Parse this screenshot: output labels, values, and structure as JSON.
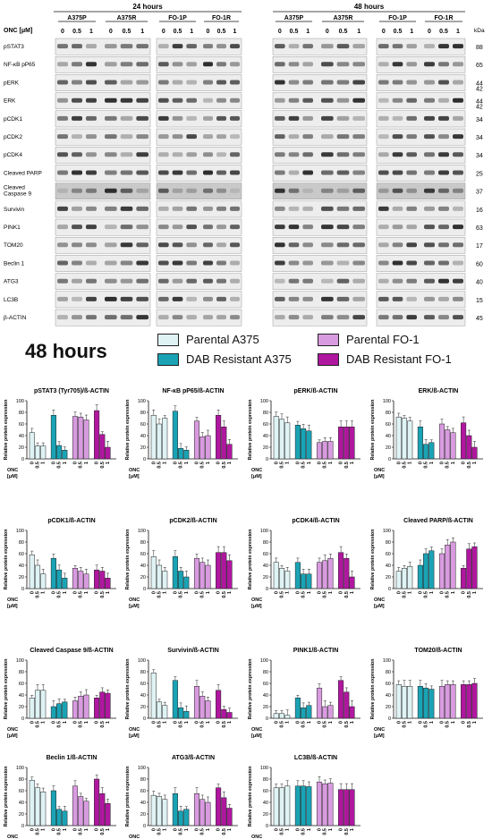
{
  "colors": {
    "parental_a375": "#dff3f4",
    "resistant_a375": "#1aa3b5",
    "parental_fo1": "#d99be0",
    "resistant_fo1": "#b0179f",
    "bar_stroke": "#222222"
  },
  "western_blot": {
    "time_labels": [
      "24 hours",
      "48 hours"
    ],
    "onc_label": "ONC [μM]",
    "doses": [
      "0",
      "0.5",
      "1"
    ],
    "groups": [
      "A375P",
      "A375R",
      "FO-1P",
      "FO-1R"
    ],
    "kda_label": "kDa",
    "proteins": [
      {
        "name": "pSTAT3",
        "kda": "88"
      },
      {
        "name": "NF-κB pP65",
        "kda": "65"
      },
      {
        "name": "pERK",
        "kda": "44"
      },
      {
        "name": "ERK",
        "kda": "44"
      },
      {
        "name": "pCDK1",
        "kda": "34"
      },
      {
        "name": "pCDK2",
        "kda": "34"
      },
      {
        "name": "pCDK4",
        "kda": "34"
      },
      {
        "name": "Cleaved PARP",
        "kda": "25"
      },
      {
        "name": "Cleaved Caspase 9",
        "kda": "37"
      },
      {
        "name": "Survivin",
        "kda": "16"
      },
      {
        "name": "PINK1",
        "kda": "63"
      },
      {
        "name": "TOM20",
        "kda": "17"
      },
      {
        "name": "Beclin 1",
        "kda": "60"
      },
      {
        "name": "ATG3",
        "kda": "40"
      },
      {
        "name": "LC3B",
        "kda": "15"
      },
      {
        "name": "β-ACTIN",
        "kda": "45"
      }
    ],
    "extra_kda": {
      "pERK": "42",
      "ERK": "42"
    }
  },
  "legend": {
    "title": "48 hours",
    "items": [
      "Parental A375",
      "DAB Resistant A375",
      "Parental FO-1",
      "DAB Resistant FO-1"
    ]
  },
  "axis": {
    "ylabel": "Relative protein expression",
    "onc_label": "ONC",
    "unit_label": "[μM]",
    "doses": [
      "0",
      "0.5",
      "1"
    ],
    "yticks": [
      0,
      20,
      40,
      60,
      80,
      100
    ]
  },
  "chart_data": [
    {
      "type": "bar",
      "title": "pSTAT3 (Tyr705)/ß-ACTIN",
      "ylim": [
        0,
        100
      ],
      "groups": [
        "Parental A375",
        "DAB Resistant A375",
        "Parental FO-1",
        "DAB Resistant FO-1"
      ],
      "categories": [
        "0",
        "0.5",
        "1"
      ],
      "series": [
        {
          "name": "Parental A375",
          "values": [
            45,
            22,
            22
          ]
        },
        {
          "name": "DAB Resistant A375",
          "values": [
            75,
            23,
            15
          ]
        },
        {
          "name": "Parental FO-1",
          "values": [
            73,
            72,
            67
          ]
        },
        {
          "name": "DAB Resistant FO-1",
          "values": [
            83,
            42,
            20
          ]
        }
      ]
    },
    {
      "type": "bar",
      "title": "NF-κB pP65/ß-ACTIN",
      "ylim": [
        0,
        100
      ],
      "groups": [
        "Parental A375",
        "DAB Resistant A375",
        "Parental FO-1",
        "DAB Resistant FO-1"
      ],
      "categories": [
        "0",
        "0.5",
        "1"
      ],
      "series": [
        {
          "name": "Parental A375",
          "values": [
            75,
            60,
            70
          ]
        },
        {
          "name": "DAB Resistant A375",
          "values": [
            82,
            18,
            15
          ]
        },
        {
          "name": "Parental FO-1",
          "values": [
            65,
            38,
            40
          ]
        },
        {
          "name": "DAB Resistant FO-1",
          "values": [
            75,
            55,
            25
          ]
        }
      ]
    },
    {
      "type": "bar",
      "title": "pERK/ß-ACTIN",
      "ylim": [
        0,
        100
      ],
      "groups": [
        "Parental A375",
        "DAB Resistant A375",
        "Parental FO-1",
        "DAB Resistant FO-1"
      ],
      "categories": [
        "0",
        "0.5",
        "1"
      ],
      "series": [
        {
          "name": "Parental A375",
          "values": [
            73,
            68,
            62
          ]
        },
        {
          "name": "DAB Resistant A375",
          "values": [
            58,
            52,
            48
          ]
        },
        {
          "name": "Parental FO-1",
          "values": [
            28,
            30,
            30
          ]
        },
        {
          "name": "DAB Resistant FO-1",
          "values": [
            55,
            55,
            55
          ]
        }
      ]
    },
    {
      "type": "bar",
      "title": "ERK/ß-ACTIN",
      "ylim": [
        0,
        100
      ],
      "groups": [
        "Parental A375",
        "DAB Resistant A375",
        "Parental FO-1",
        "DAB Resistant FO-1"
      ],
      "categories": [
        "0",
        "0.5",
        "1"
      ],
      "series": [
        {
          "name": "Parental A375",
          "values": [
            72,
            70,
            65
          ]
        },
        {
          "name": "DAB Resistant A375",
          "values": [
            55,
            25,
            28
          ]
        },
        {
          "name": "Parental FO-1",
          "values": [
            60,
            50,
            45
          ]
        },
        {
          "name": "DAB Resistant FO-1",
          "values": [
            62,
            40,
            20
          ]
        }
      ]
    },
    {
      "type": "bar",
      "title": "pCDK1/ß-ACTIN",
      "ylim": [
        0,
        100
      ],
      "groups": [
        "Parental A375",
        "DAB Resistant A375",
        "Parental FO-1",
        "DAB Resistant FO-1"
      ],
      "categories": [
        "0",
        "0.5",
        "1"
      ],
      "series": [
        {
          "name": "Parental A375",
          "values": [
            58,
            40,
            25
          ]
        },
        {
          "name": "DAB Resistant A375",
          "values": [
            52,
            32,
            18
          ]
        },
        {
          "name": "Parental FO-1",
          "values": [
            35,
            30,
            25
          ]
        },
        {
          "name": "DAB Resistant FO-1",
          "values": [
            32,
            30,
            18
          ]
        }
      ]
    },
    {
      "type": "bar",
      "title": "pCDK2/ß-ACTIN",
      "ylim": [
        0,
        100
      ],
      "groups": [
        "Parental A375",
        "DAB Resistant A375",
        "Parental FO-1",
        "DAB Resistant FO-1"
      ],
      "categories": [
        "0",
        "0.5",
        "1"
      ],
      "series": [
        {
          "name": "Parental A375",
          "values": [
            55,
            40,
            30
          ]
        },
        {
          "name": "DAB Resistant A375",
          "values": [
            55,
            30,
            20
          ]
        },
        {
          "name": "Parental FO-1",
          "values": [
            52,
            45,
            40
          ]
        },
        {
          "name": "DAB Resistant FO-1",
          "values": [
            62,
            62,
            48
          ]
        }
      ]
    },
    {
      "type": "bar",
      "title": "pCDK4/ß-ACTIN",
      "ylim": [
        0,
        100
      ],
      "groups": [
        "Parental A375",
        "DAB Resistant A375",
        "Parental FO-1",
        "DAB Resistant FO-1"
      ],
      "categories": [
        "0",
        "0.5",
        "1"
      ],
      "series": [
        {
          "name": "Parental A375",
          "values": [
            45,
            35,
            30
          ]
        },
        {
          "name": "DAB Resistant A375",
          "values": [
            45,
            25,
            25
          ]
        },
        {
          "name": "Parental FO-1",
          "values": [
            45,
            48,
            52
          ]
        },
        {
          "name": "DAB Resistant FO-1",
          "values": [
            62,
            52,
            20
          ]
        }
      ]
    },
    {
      "type": "bar",
      "title": "Cleaved PARP/ß-ACTIN",
      "ylim": [
        0,
        100
      ],
      "groups": [
        "Parental A375",
        "DAB Resistant A375",
        "Parental FO-1",
        "DAB Resistant FO-1"
      ],
      "categories": [
        "0",
        "0.5",
        "1"
      ],
      "series": [
        {
          "name": "Parental A375",
          "values": [
            30,
            35,
            38
          ]
        },
        {
          "name": "DAB Resistant A375",
          "values": [
            40,
            60,
            65
          ]
        },
        {
          "name": "Parental FO-1",
          "values": [
            60,
            75,
            80
          ]
        },
        {
          "name": "DAB Resistant FO-1",
          "values": [
            35,
            68,
            72
          ]
        }
      ]
    },
    {
      "type": "bar",
      "title": "Cleaved Caspase 9/ß-ACTIN",
      "ylim": [
        0,
        100
      ],
      "groups": [
        "Parental A375",
        "DAB Resistant A375",
        "Parental FO-1",
        "DAB Resistant FO-1"
      ],
      "categories": [
        "0",
        "0.5",
        "1"
      ],
      "series": [
        {
          "name": "Parental A375",
          "values": [
            35,
            48,
            48
          ]
        },
        {
          "name": "DAB Resistant A375",
          "values": [
            20,
            25,
            28
          ]
        },
        {
          "name": "Parental FO-1",
          "values": [
            30,
            38,
            40
          ]
        },
        {
          "name": "DAB Resistant FO-1",
          "values": [
            35,
            45,
            43
          ]
        }
      ]
    },
    {
      "type": "bar",
      "title": "Survivin/ß-ACTIN",
      "ylim": [
        0,
        100
      ],
      "groups": [
        "Parental A375",
        "DAB Resistant A375",
        "Parental FO-1",
        "DAB Resistant FO-1"
      ],
      "categories": [
        "0",
        "0.5",
        "1"
      ],
      "series": [
        {
          "name": "Parental A375",
          "values": [
            78,
            28,
            22
          ]
        },
        {
          "name": "DAB Resistant A375",
          "values": [
            65,
            18,
            12
          ]
        },
        {
          "name": "Parental FO-1",
          "values": [
            55,
            38,
            30
          ]
        },
        {
          "name": "DAB Resistant FO-1",
          "values": [
            48,
            15,
            10
          ]
        }
      ]
    },
    {
      "type": "bar",
      "title": "PINK1/ß-ACTIN",
      "ylim": [
        0,
        100
      ],
      "groups": [
        "Parental A375",
        "DAB Resistant A375",
        "Parental FO-1",
        "DAB Resistant FO-1"
      ],
      "categories": [
        "0",
        "0.5",
        "1"
      ],
      "series": [
        {
          "name": "Parental A375",
          "values": [
            8,
            8,
            5
          ]
        },
        {
          "name": "DAB Resistant A375",
          "values": [
            35,
            18,
            22
          ]
        },
        {
          "name": "Parental FO-1",
          "values": [
            52,
            20,
            22
          ]
        },
        {
          "name": "DAB Resistant FO-1",
          "values": [
            65,
            45,
            20
          ]
        }
      ]
    },
    {
      "type": "bar",
      "title": "TOM20/ß-ACTIN",
      "ylim": [
        0,
        100
      ],
      "groups": [
        "Parental A375",
        "DAB Resistant A375",
        "Parental FO-1",
        "DAB Resistant FO-1"
      ],
      "categories": [
        "0",
        "0.5",
        "1"
      ],
      "series": [
        {
          "name": "Parental A375",
          "values": [
            58,
            55,
            55
          ]
        },
        {
          "name": "DAB Resistant A375",
          "values": [
            55,
            52,
            50
          ]
        },
        {
          "name": "Parental FO-1",
          "values": [
            55,
            58,
            58
          ]
        },
        {
          "name": "DAB Resistant FO-1",
          "values": [
            58,
            58,
            60
          ]
        }
      ]
    },
    {
      "type": "bar",
      "title": "Beclin 1/ß-ACTIN",
      "ylim": [
        0,
        100
      ],
      "groups": [
        "Parental A375",
        "DAB Resistant A375",
        "Parental FO-1",
        "DAB Resistant FO-1"
      ],
      "categories": [
        "0",
        "0.5",
        "1"
      ],
      "series": [
        {
          "name": "Parental A375",
          "values": [
            78,
            65,
            58
          ]
        },
        {
          "name": "DAB Resistant A375",
          "values": [
            60,
            28,
            25
          ]
        },
        {
          "name": "Parental FO-1",
          "values": [
            68,
            50,
            42
          ]
        },
        {
          "name": "DAB Resistant FO-1",
          "values": [
            80,
            55,
            38
          ]
        }
      ]
    },
    {
      "type": "bar",
      "title": "ATG3/ß-ACTIN",
      "ylim": [
        0,
        100
      ],
      "groups": [
        "Parental A375",
        "DAB Resistant A375",
        "Parental FO-1",
        "DAB Resistant FO-1"
      ],
      "categories": [
        "0",
        "0.5",
        "1"
      ],
      "series": [
        {
          "name": "Parental A375",
          "values": [
            52,
            50,
            45
          ]
        },
        {
          "name": "DAB Resistant A375",
          "values": [
            55,
            25,
            28
          ]
        },
        {
          "name": "Parental FO-1",
          "values": [
            55,
            45,
            40
          ]
        },
        {
          "name": "DAB Resistant FO-1",
          "values": [
            65,
            48,
            30
          ]
        }
      ]
    },
    {
      "type": "bar",
      "title": "LC3B/ß-ACTIN",
      "ylim": [
        0,
        100
      ],
      "groups": [
        "Parental A375",
        "DAB Resistant A375",
        "Parental FO-1",
        "DAB Resistant FO-1"
      ],
      "categories": [
        "0",
        "0.5",
        "1"
      ],
      "series": [
        {
          "name": "Parental A375",
          "values": [
            65,
            65,
            68
          ]
        },
        {
          "name": "DAB Resistant A375",
          "values": [
            68,
            68,
            67
          ]
        },
        {
          "name": "Parental FO-1",
          "values": [
            75,
            72,
            73
          ]
        },
        {
          "name": "DAB Resistant FO-1",
          "values": [
            62,
            62,
            62
          ]
        }
      ]
    }
  ]
}
